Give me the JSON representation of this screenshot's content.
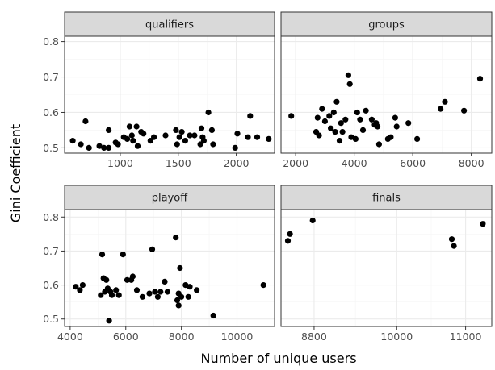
{
  "chart_data": {
    "type": "scatter",
    "xlabel": "Number of unique users",
    "ylabel": "Gini Coefficient",
    "facet_layout": "2x2",
    "grid": true,
    "colors": {
      "strip_fill": "#d9d9d9",
      "panel_border": "#333333",
      "grid_major": "#ebebeb",
      "grid_minor": "#f5f5f5",
      "point": "#000000"
    },
    "panels": [
      {
        "title": "qualifiers",
        "xlim": [
          520,
          2330
        ],
        "ylim": [
          0.485,
          0.815
        ],
        "xticks": [
          1000,
          1500,
          2000
        ],
        "yticks": [
          0.5,
          0.6,
          0.7,
          0.8
        ],
        "show_x_ticks": true,
        "show_y_ticks": true,
        "points": [
          [
            590,
            0.52
          ],
          [
            660,
            0.51
          ],
          [
            700,
            0.575
          ],
          [
            730,
            0.5
          ],
          [
            820,
            0.505
          ],
          [
            860,
            0.5
          ],
          [
            900,
            0.55
          ],
          [
            900,
            0.5
          ],
          [
            960,
            0.515
          ],
          [
            980,
            0.51
          ],
          [
            1030,
            0.53
          ],
          [
            1060,
            0.525
          ],
          [
            1080,
            0.56
          ],
          [
            1100,
            0.535
          ],
          [
            1110,
            0.52
          ],
          [
            1140,
            0.56
          ],
          [
            1150,
            0.505
          ],
          [
            1180,
            0.545
          ],
          [
            1200,
            0.54
          ],
          [
            1260,
            0.52
          ],
          [
            1290,
            0.53
          ],
          [
            1390,
            0.535
          ],
          [
            1480,
            0.55
          ],
          [
            1490,
            0.51
          ],
          [
            1510,
            0.53
          ],
          [
            1530,
            0.545
          ],
          [
            1560,
            0.52
          ],
          [
            1600,
            0.535
          ],
          [
            1640,
            0.535
          ],
          [
            1690,
            0.51
          ],
          [
            1700,
            0.555
          ],
          [
            1710,
            0.53
          ],
          [
            1720,
            0.52
          ],
          [
            1760,
            0.6
          ],
          [
            1790,
            0.55
          ],
          [
            1800,
            0.51
          ],
          [
            1990,
            0.5
          ],
          [
            2010,
            0.54
          ],
          [
            2100,
            0.53
          ],
          [
            2120,
            0.59
          ],
          [
            2180,
            0.53
          ],
          [
            2280,
            0.525
          ]
        ]
      },
      {
        "title": "groups",
        "xlim": [
          1500,
          8700
        ],
        "ylim": [
          0.485,
          0.815
        ],
        "xticks": [
          2000,
          4000,
          6000,
          8000
        ],
        "yticks": [
          0.5,
          0.6,
          0.7,
          0.8
        ],
        "show_x_ticks": true,
        "show_y_ticks": false,
        "points": [
          [
            1850,
            0.59
          ],
          [
            2700,
            0.545
          ],
          [
            2750,
            0.585
          ],
          [
            2800,
            0.535
          ],
          [
            2900,
            0.61
          ],
          [
            3000,
            0.575
          ],
          [
            3150,
            0.59
          ],
          [
            3200,
            0.555
          ],
          [
            3300,
            0.6
          ],
          [
            3350,
            0.545
          ],
          [
            3400,
            0.63
          ],
          [
            3500,
            0.52
          ],
          [
            3550,
            0.57
          ],
          [
            3600,
            0.545
          ],
          [
            3700,
            0.58
          ],
          [
            3800,
            0.705
          ],
          [
            3850,
            0.68
          ],
          [
            3900,
            0.53
          ],
          [
            4050,
            0.525
          ],
          [
            4100,
            0.6
          ],
          [
            4200,
            0.58
          ],
          [
            4300,
            0.55
          ],
          [
            4400,
            0.605
          ],
          [
            4600,
            0.58
          ],
          [
            4700,
            0.565
          ],
          [
            4750,
            0.57
          ],
          [
            4800,
            0.56
          ],
          [
            4850,
            0.51
          ],
          [
            5150,
            0.525
          ],
          [
            5250,
            0.53
          ],
          [
            5400,
            0.585
          ],
          [
            5450,
            0.56
          ],
          [
            5850,
            0.57
          ],
          [
            6150,
            0.525
          ],
          [
            6950,
            0.61
          ],
          [
            7100,
            0.63
          ],
          [
            7750,
            0.605
          ],
          [
            8300,
            0.695
          ]
        ]
      },
      {
        "title": "playoff",
        "xlim": [
          3800,
          11350
        ],
        "ylim": [
          0.478,
          0.822
        ],
        "xticks": [
          4000,
          6000,
          8000,
          10000
        ],
        "yticks": [
          0.5,
          0.6,
          0.7,
          0.8
        ],
        "show_x_ticks": true,
        "show_y_ticks": true,
        "points": [
          [
            4200,
            0.595
          ],
          [
            4350,
            0.585
          ],
          [
            4450,
            0.6
          ],
          [
            5100,
            0.57
          ],
          [
            5150,
            0.69
          ],
          [
            5200,
            0.62
          ],
          [
            5250,
            0.58
          ],
          [
            5300,
            0.615
          ],
          [
            5350,
            0.59
          ],
          [
            5400,
            0.495
          ],
          [
            5450,
            0.58
          ],
          [
            5500,
            0.57
          ],
          [
            5650,
            0.585
          ],
          [
            5750,
            0.57
          ],
          [
            5900,
            0.69
          ],
          [
            6050,
            0.615
          ],
          [
            6200,
            0.615
          ],
          [
            6250,
            0.625
          ],
          [
            6400,
            0.585
          ],
          [
            6600,
            0.565
          ],
          [
            6850,
            0.575
          ],
          [
            6950,
            0.705
          ],
          [
            7050,
            0.58
          ],
          [
            7150,
            0.565
          ],
          [
            7250,
            0.58
          ],
          [
            7400,
            0.61
          ],
          [
            7500,
            0.58
          ],
          [
            7800,
            0.74
          ],
          [
            7850,
            0.555
          ],
          [
            7900,
            0.54
          ],
          [
            7900,
            0.575
          ],
          [
            7950,
            0.65
          ],
          [
            8000,
            0.565
          ],
          [
            8150,
            0.6
          ],
          [
            8250,
            0.565
          ],
          [
            8300,
            0.595
          ],
          [
            8550,
            0.585
          ],
          [
            9150,
            0.51
          ],
          [
            10950,
            0.6
          ]
        ]
      },
      {
        "title": "finals",
        "xlim": [
          8320,
          11380
        ],
        "ylim": [
          0.478,
          0.822
        ],
        "xticks": [
          8800,
          10000,
          11000
        ],
        "yticks": [
          0.5,
          0.6,
          0.7,
          0.8
        ],
        "show_x_ticks": true,
        "show_y_ticks": false,
        "points": [
          [
            8420,
            0.73
          ],
          [
            8450,
            0.75
          ],
          [
            8780,
            0.79
          ],
          [
            10800,
            0.735
          ],
          [
            10830,
            0.715
          ],
          [
            11250,
            0.78
          ]
        ]
      }
    ]
  }
}
